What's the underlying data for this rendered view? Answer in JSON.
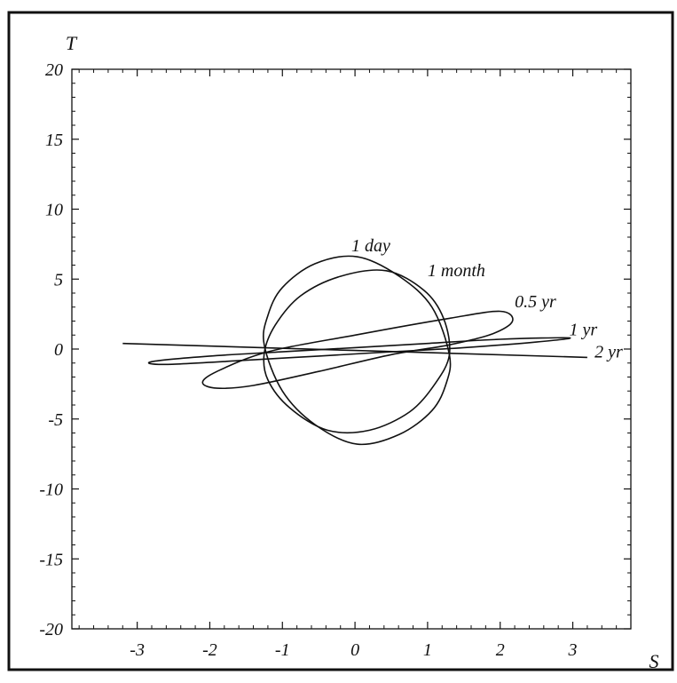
{
  "chart_data": {
    "type": "line",
    "xlabel": "S",
    "ylabel": "T",
    "xlim": [
      -3.9,
      3.8
    ],
    "ylim": [
      -20,
      20
    ],
    "x_ticks": [
      -3,
      -2,
      -1,
      0,
      1,
      2,
      3
    ],
    "y_ticks": [
      20,
      15,
      10,
      5,
      0,
      -5,
      -10,
      -15,
      -20
    ],
    "grid": false,
    "series": [
      {
        "name": "1 day",
        "x": [
          0.03,
          -0.55,
          -1.0,
          -1.2,
          -1.25,
          -1.0,
          -0.55,
          0.03,
          0.61,
          1.06,
          1.26,
          1.3,
          1.06,
          0.61,
          0.03
        ],
        "y": [
          6.6,
          6.1,
          4.4,
          2.4,
          0.3,
          -3.0,
          -5.4,
          -6.8,
          -6.1,
          -4.4,
          -2.4,
          -0.4,
          3.0,
          5.2,
          6.6
        ]
      },
      {
        "name": "1 month",
        "x": [
          0.43,
          -0.2,
          -0.75,
          -1.1,
          -1.25,
          -1.2,
          -0.9,
          -0.38,
          0.2,
          0.75,
          1.1,
          1.3,
          1.22,
          0.95,
          0.43
        ],
        "y": [
          5.6,
          5.2,
          3.8,
          1.7,
          -0.3,
          -2.2,
          -4.2,
          -5.8,
          -5.8,
          -4.5,
          -2.5,
          -0.4,
          2.2,
          4.2,
          5.6
        ]
      },
      {
        "name": "0.5 yr",
        "x": [
          2.17,
          2.0,
          1.3,
          0.0,
          -1.2,
          -1.9,
          -2.1,
          -1.9,
          -1.4,
          -0.5,
          0.5,
          1.3,
          1.9,
          2.17
        ],
        "y": [
          2.0,
          2.7,
          2.2,
          1.0,
          -0.2,
          -1.6,
          -2.4,
          -2.8,
          -2.6,
          -1.6,
          -0.4,
          0.3,
          1.1,
          2.0
        ]
      },
      {
        "name": "1 yr",
        "x": [
          2.95,
          2.0,
          1.0,
          0.0,
          -1.0,
          -2.0,
          -2.8,
          -2.6,
          -1.5,
          -0.5,
          0.5,
          1.5,
          2.5,
          2.95
        ],
        "y": [
          0.8,
          0.7,
          0.4,
          0.1,
          -0.2,
          -0.5,
          -0.9,
          -1.1,
          -0.8,
          -0.5,
          -0.2,
          0.1,
          0.5,
          0.8
        ]
      },
      {
        "name": "2 yr",
        "x": [
          -3.2,
          0.0,
          3.2
        ],
        "y": [
          0.4,
          -0.1,
          -0.6
        ]
      }
    ],
    "annotations": [
      {
        "text": "1 day",
        "x": -0.05,
        "y": 7.0
      },
      {
        "text": "1 month",
        "x": 1.0,
        "y": 5.2
      },
      {
        "text": "0.5 yr",
        "x": 2.2,
        "y": 3.0
      },
      {
        "text": "1 yr",
        "x": 2.95,
        "y": 1.0
      },
      {
        "text": "2 yr",
        "x": 3.3,
        "y": -0.6
      }
    ]
  }
}
